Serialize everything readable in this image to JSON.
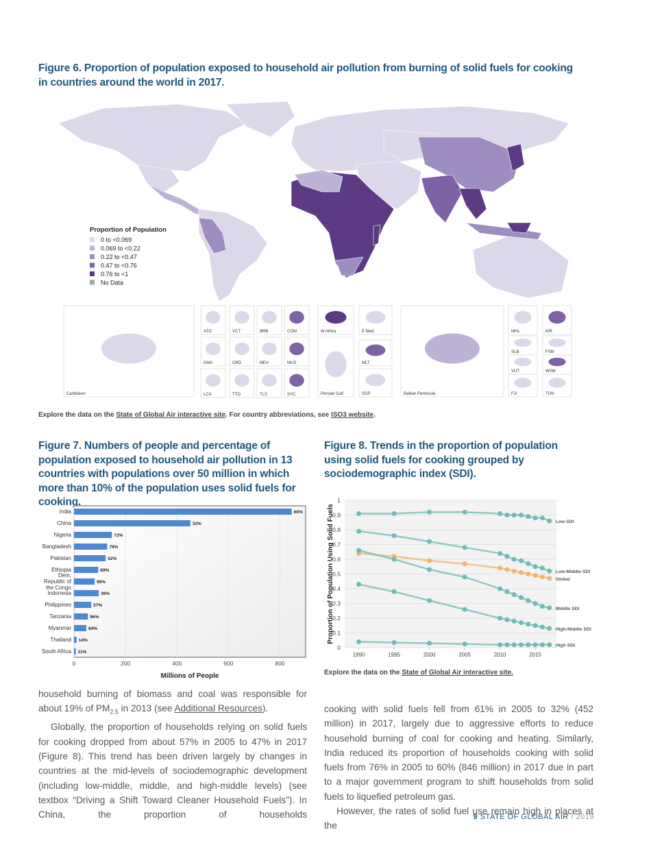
{
  "figure6": {
    "title": "Figure 6. Proportion of population exposed to household air pollution from burning of solid fuels for cooking in countries around the world in 2017.",
    "legend_title": "Proportion of Population",
    "legend": [
      {
        "label": "0 to <0.069",
        "color": "#dcd8e9"
      },
      {
        "label": "0.069 to <0.22",
        "color": "#bdb3d6"
      },
      {
        "label": "0.22 to <0.47",
        "color": "#9d8dc0"
      },
      {
        "label": "0.47 to <0.76",
        "color": "#7d62a6"
      },
      {
        "label": "0.76 to <1",
        "color": "#5c3a84"
      },
      {
        "label": "No Data",
        "color": "#a6a6a6"
      }
    ],
    "insets": [
      "Caribbean",
      "ATG",
      "VCT",
      "BRB",
      "COM",
      "DMA",
      "GRD",
      "MDV",
      "MUS",
      "LCA",
      "TTO",
      "TLS",
      "SYC",
      "W Africa",
      "E Med.",
      "Persian Gulf",
      "MLT",
      "SGP",
      "Balkan Peninsula",
      "MHL",
      "KIR",
      "SLB",
      "FSM",
      "VUT",
      "WSM",
      "FJI",
      "TON"
    ],
    "note": [
      "Explore the data on the ",
      "State of Global Air interactive site",
      ". For country abbreviations, see ",
      "ISO3 website",
      "."
    ]
  },
  "chart_data": [
    {
      "type": "bar",
      "orientation": "horizontal",
      "title": "Figure 7. Numbers of people and percentage of population exposed to household air pollution in 13 countries with populations over 50 million in which more than 10% of the population uses solid fuels for cooking.",
      "categories": [
        "India",
        "China",
        "Nigeria",
        "Bangladesh",
        "Pakistan",
        "Ethiopia",
        "Dem. Republic of the Congo",
        "Indonesia",
        "Philippines",
        "Tanzania",
        "Myanmar",
        "Thailand",
        "South Africa"
      ],
      "values": [
        846,
        452,
        147,
        129,
        123,
        94,
        80,
        96,
        67,
        54,
        48,
        10,
        7
      ],
      "percent_labels": [
        "60%",
        "32%",
        "72%",
        "79%",
        "52%",
        "89%",
        "96%",
        "36%",
        "57%",
        "96%",
        "84%",
        "14%",
        "11%"
      ],
      "color": "#4f88cf",
      "x_label": "Millions of People",
      "xlim": [
        0,
        900
      ],
      "xticks": [
        0,
        200,
        400,
        600,
        800
      ],
      "grid": true
    },
    {
      "type": "line",
      "title": "Figure 8. Trends in the proportion of population using solid fuels for cooking grouped by sociodemographic index (SDI).",
      "y_label": "Proportion of Population Using Solid Fuels",
      "x": [
        1990,
        1995,
        2000,
        2005,
        2010,
        2011,
        2012,
        2013,
        2014,
        2015,
        2016,
        2017
      ],
      "xlim": [
        1988,
        2018
      ],
      "xticks": [
        1990,
        1995,
        2000,
        2005,
        2010,
        2015
      ],
      "ylim": [
        0,
        1
      ],
      "yticks": [
        0,
        0.1,
        0.2,
        0.3,
        0.4,
        0.5,
        0.6,
        0.7,
        0.8,
        0.9,
        1
      ],
      "grid": true,
      "series": [
        {
          "name": "Low SDI",
          "color": "#6dbcb6",
          "values": [
            0.91,
            0.91,
            0.92,
            0.92,
            0.91,
            0.9,
            0.9,
            0.9,
            0.89,
            0.88,
            0.88,
            0.86
          ]
        },
        {
          "name": "Low-Middle SDI",
          "color": "#6dbcb6",
          "values": [
            0.79,
            0.76,
            0.72,
            0.68,
            0.64,
            0.62,
            0.6,
            0.59,
            0.57,
            0.55,
            0.54,
            0.52
          ]
        },
        {
          "name": "Global",
          "color": "#f0b56a",
          "values": [
            0.64,
            0.62,
            0.59,
            0.57,
            0.54,
            0.53,
            0.52,
            0.51,
            0.5,
            0.49,
            0.48,
            0.47
          ]
        },
        {
          "name": "Middle SDI",
          "color": "#6dbcb6",
          "values": [
            0.66,
            0.6,
            0.53,
            0.48,
            0.4,
            0.38,
            0.36,
            0.34,
            0.32,
            0.3,
            0.28,
            0.27
          ]
        },
        {
          "name": "High-Middle SDI",
          "color": "#6dbcb6",
          "values": [
            0.43,
            0.38,
            0.32,
            0.26,
            0.2,
            0.19,
            0.18,
            0.17,
            0.16,
            0.15,
            0.14,
            0.13
          ]
        },
        {
          "name": "High SDI",
          "color": "#6dbcb6",
          "values": [
            0.04,
            0.035,
            0.03,
            0.025,
            0.02,
            0.02,
            0.02,
            0.02,
            0.02,
            0.02,
            0.02,
            0.02
          ]
        }
      ],
      "note": [
        "Explore the data on the ",
        "State of Global Air interactive site."
      ]
    }
  ],
  "body": {
    "left": [
      [
        "household burning of biomass and coal was responsible for about 19% of PM",
        "2.5",
        " in 2013 (see ",
        "Additional Resources",
        ")."
      ],
      [
        "Globally, the proportion of households relying on solid fuels for cooking dropped from about 57% in 2005 to 47% in 2017 (Figure 8). This trend has been driven largely by changes in countries at the mid-levels of sociodemographic development (including low-middle, middle, and high-middle levels) (see textbox “Driving a Shift Toward Cleaner Household Fuels”). In China, the proportion of households"
      ]
    ],
    "right": [
      [
        "cooking with solid fuels fell from 61% in 2005 to 32% (452 million) in 2017, largely due to aggressive efforts to reduce household burning of coal for cooking and heating. Similarly, India reduced its proportion of households cooking with solid fuels from 76% in 2005 to 60% (846 million) in 2017 due in part to a major government program to shift households from solid fuels to liquefied petroleum gas."
      ],
      [
        "However, the rates of solid fuel use remain high in places at the"
      ]
    ]
  },
  "footer": {
    "page": "9",
    "title": "STATE OF GLOBAL AIR",
    "separator": "/",
    "year": "2019"
  }
}
